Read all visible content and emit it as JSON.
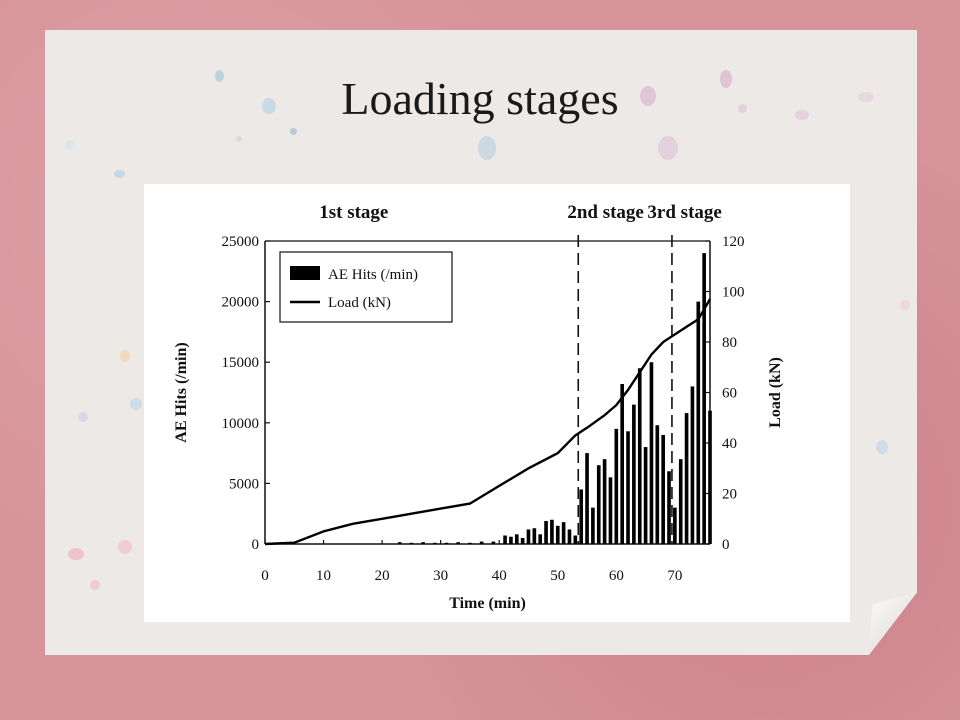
{
  "slide": {
    "title": "Loading stages"
  },
  "chart_data": {
    "type": "bar",
    "stage_labels": [
      "1st stage",
      "2nd stage",
      "3rd stage"
    ],
    "stage_boundaries": [
      53.5,
      69.5
    ],
    "x": {
      "label": "Time (min)",
      "lim": [
        0,
        76
      ],
      "ticks": [
        0,
        10,
        20,
        30,
        40,
        50,
        60,
        70
      ]
    },
    "y_left": {
      "label": "AE Hits (/min)",
      "lim": [
        0,
        25000
      ],
      "ticks": [
        0,
        5000,
        10000,
        15000,
        20000,
        25000
      ]
    },
    "y_right": {
      "label": "Load (kN)",
      "lim": [
        0,
        120
      ],
      "ticks": [
        0,
        20,
        40,
        60,
        80,
        100,
        120
      ]
    },
    "legend": [
      "AE Hits (/min)",
      "Load (kN)"
    ],
    "series": [
      {
        "name": "AE Hits (/min)",
        "kind": "bar",
        "axis": "left",
        "x": [
          23,
          25,
          27,
          29,
          31,
          33,
          35,
          37,
          39,
          41,
          42,
          43,
          44,
          45,
          46,
          47,
          48,
          49,
          50,
          51,
          52,
          53,
          54,
          55,
          56,
          57,
          58,
          59,
          60,
          61,
          62,
          63,
          64,
          65,
          66,
          67,
          68,
          69,
          70,
          71,
          72,
          73,
          74,
          75,
          76
        ],
        "values": [
          150,
          100,
          150,
          100,
          100,
          150,
          100,
          200,
          200,
          700,
          600,
          800,
          500,
          1200,
          1300,
          800,
          1900,
          2000,
          1500,
          1800,
          1200,
          700,
          4500,
          7500,
          3000,
          6500,
          7000,
          5500,
          9500,
          13200,
          9300,
          11500,
          14500,
          8000,
          15000,
          9800,
          9000,
          6000,
          3000,
          7000,
          10800,
          13000,
          20000,
          24000,
          11000
        ]
      },
      {
        "name": "Load (kN)",
        "kind": "line",
        "axis": "right",
        "x": [
          0,
          5,
          10,
          15,
          20,
          25,
          30,
          35,
          40,
          45,
          50,
          53,
          55,
          58,
          60,
          62,
          64,
          66,
          68,
          70,
          72,
          74,
          76
        ],
        "values": [
          0,
          0.5,
          5,
          8,
          10,
          12,
          14,
          16,
          23,
          30,
          36,
          43,
          46,
          51,
          55,
          61,
          68,
          75,
          80,
          83,
          86,
          89,
          97
        ]
      }
    ]
  }
}
